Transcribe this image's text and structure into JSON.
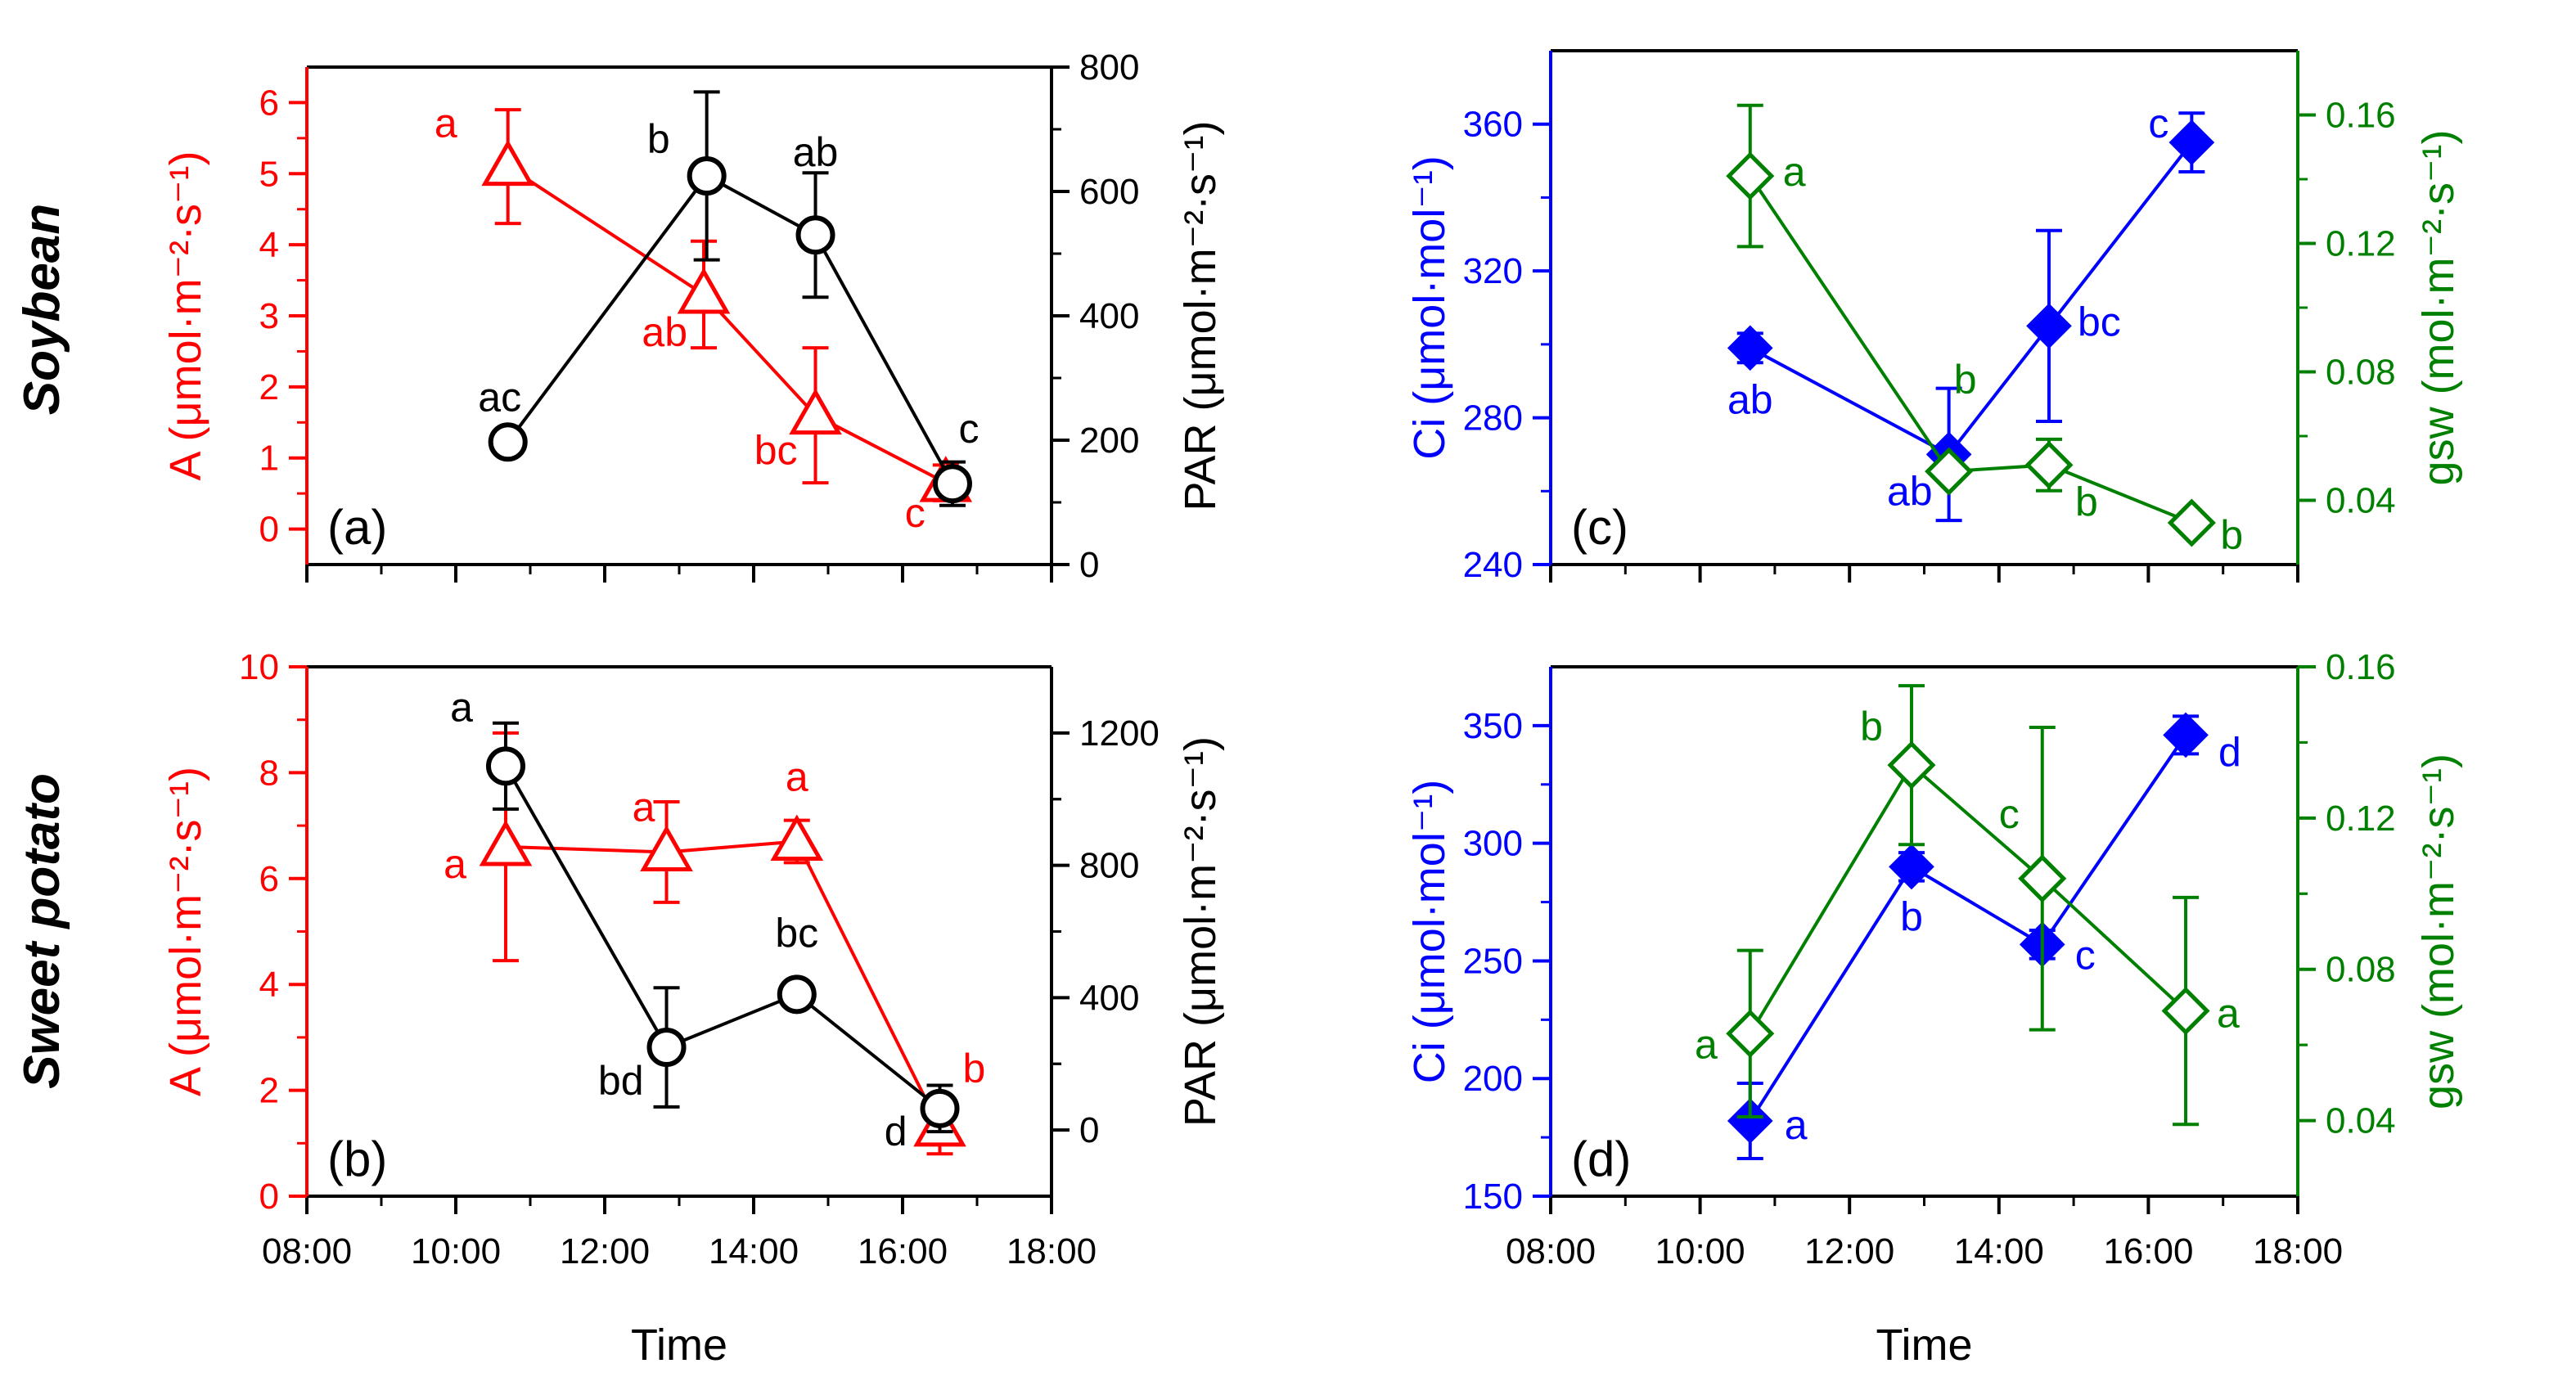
{
  "figure": {
    "row_labels": [
      "Soybean",
      "Sweet potato"
    ],
    "colors": {
      "A": "#ff0000",
      "PAR": "#000000",
      "Ci": "#0000ff",
      "gsw": "#008000",
      "frame": "#000000"
    }
  },
  "chart_data": [
    {
      "type": "line",
      "panel": "(a)",
      "row": "Soybean",
      "xlabel": "",
      "x_ticks": [
        "08:00",
        "10:00",
        "12:00",
        "14:00",
        "16:00",
        "18:00"
      ],
      "xlim_hours": [
        8,
        18
      ],
      "left_axis": {
        "label": "A (μmol·m⁻²·s⁻¹)",
        "ticks": [
          "0",
          "1",
          "2",
          "3",
          "4",
          "5",
          "6"
        ],
        "ylim": [
          -0.5,
          6.5
        ],
        "color": "#ff0000"
      },
      "right_axis": {
        "label": "PAR (μmol·m⁻²·s⁻¹)",
        "ticks": [
          "0",
          "200",
          "400",
          "600",
          "800"
        ],
        "ylim": [
          0,
          800
        ],
        "color": "#000000"
      },
      "series": [
        {
          "name": "A",
          "axis": "left",
          "marker": "open-triangle",
          "color": "#ff0000",
          "x": [
            10.7,
            13.33,
            14.83,
            16.58
          ],
          "y": [
            5.1,
            3.3,
            1.6,
            0.65
          ],
          "err": [
            0.8,
            0.75,
            0.95,
            0.25
          ],
          "letters": [
            "a",
            "ab",
            "bc",
            "c"
          ]
        },
        {
          "name": "PAR",
          "axis": "right",
          "marker": "open-circle",
          "color": "#000000",
          "x": [
            10.7,
            13.37,
            14.83,
            16.67
          ],
          "y": [
            197,
            625,
            530,
            130
          ],
          "err": [
            10,
            135,
            100,
            35
          ],
          "letters": [
            "ac",
            "b",
            "ab",
            "c"
          ]
        }
      ]
    },
    {
      "type": "line",
      "panel": "(b)",
      "row": "Sweet potato",
      "xlabel": "Time",
      "x_ticks": [
        "08:00",
        "10:00",
        "12:00",
        "14:00",
        "16:00",
        "18:00"
      ],
      "xlim_hours": [
        8,
        18
      ],
      "left_axis": {
        "label": "A (μmol·m⁻²·s⁻¹)",
        "ticks": [
          "0",
          "2",
          "4",
          "6",
          "8",
          "10"
        ],
        "ylim": [
          0,
          10
        ],
        "color": "#ff0000"
      },
      "right_axis": {
        "label": "PAR (μmol·m⁻²·s⁻¹)",
        "ticks": [
          "0",
          "400",
          "800",
          "1200"
        ],
        "ylim": [
          -200,
          1400
        ],
        "color": "#000000"
      },
      "series": [
        {
          "name": "A",
          "axis": "left",
          "marker": "open-triangle",
          "color": "#ff0000",
          "x": [
            10.67,
            12.83,
            14.58,
            16.5
          ],
          "y": [
            6.6,
            6.5,
            6.7,
            1.3
          ],
          "err": [
            2.15,
            0.95,
            0.4,
            0.5
          ],
          "letters": [
            "a",
            "a",
            "a",
            "b"
          ]
        },
        {
          "name": "PAR",
          "axis": "right",
          "marker": "open-circle",
          "color": "#000000",
          "x": [
            10.67,
            12.83,
            14.58,
            16.5
          ],
          "y": [
            1100,
            250,
            410,
            65
          ],
          "err": [
            130,
            180,
            20,
            70
          ],
          "letters": [
            "a",
            "bd",
            "bc",
            "d"
          ]
        }
      ]
    },
    {
      "type": "line",
      "panel": "(c)",
      "row": "Soybean",
      "xlabel": "",
      "x_ticks": [
        "08:00",
        "10:00",
        "12:00",
        "14:00",
        "16:00",
        "18:00"
      ],
      "xlim_hours": [
        8,
        18
      ],
      "left_axis": {
        "label": "Ci (μmol·mol⁻¹)",
        "ticks": [
          "240",
          "280",
          "320",
          "360"
        ],
        "ylim": [
          240,
          380
        ],
        "color": "#0000ff"
      },
      "right_axis": {
        "label": "gsw (mol·m⁻²·s⁻¹)",
        "ticks": [
          "0.04",
          "0.08",
          "0.12",
          "0.16"
        ],
        "ylim": [
          0.02,
          0.18
        ],
        "color": "#008000"
      },
      "series": [
        {
          "name": "Ci",
          "axis": "left",
          "marker": "filled-diamond",
          "color": "#0000ff",
          "x": [
            10.67,
            13.33,
            14.67,
            16.58
          ],
          "y": [
            299,
            270,
            305,
            355
          ],
          "err": [
            4,
            18,
            26,
            8
          ],
          "letters": [
            "ab",
            "ab",
            "bc",
            "c"
          ]
        },
        {
          "name": "gsw",
          "axis": "right",
          "marker": "open-diamond",
          "color": "#008000",
          "x": [
            10.67,
            13.33,
            14.67,
            16.58
          ],
          "y": [
            0.141,
            0.049,
            0.051,
            0.033
          ],
          "err": [
            0.022,
            0.002,
            0.008,
            0.002
          ],
          "letters": [
            "a",
            "b",
            "b",
            "b"
          ]
        }
      ]
    },
    {
      "type": "line",
      "panel": "(d)",
      "row": "Sweet potato",
      "xlabel": "Time",
      "x_ticks": [
        "08:00",
        "10:00",
        "12:00",
        "14:00",
        "16:00",
        "18:00"
      ],
      "xlim_hours": [
        8,
        18
      ],
      "left_axis": {
        "label": "Ci (μmol·mol⁻¹)",
        "ticks": [
          "150",
          "200",
          "250",
          "300",
          "350"
        ],
        "ylim": [
          150,
          375
        ],
        "color": "#0000ff"
      },
      "right_axis": {
        "label": "gsw (mol·m⁻²·s⁻¹)",
        "ticks": [
          "0.04",
          "0.08",
          "0.12",
          "0.16"
        ],
        "ylim": [
          0.02,
          0.16
        ],
        "color": "#008000"
      },
      "series": [
        {
          "name": "Ci",
          "axis": "left",
          "marker": "filled-diamond",
          "color": "#0000ff",
          "x": [
            10.67,
            12.83,
            14.58,
            16.5
          ],
          "y": [
            182,
            290,
            257,
            346
          ],
          "err": [
            16,
            6,
            6,
            8
          ],
          "letters": [
            "a",
            "b",
            "c",
            "d"
          ]
        },
        {
          "name": "gsw",
          "axis": "right",
          "marker": "open-diamond",
          "color": "#008000",
          "x": [
            10.67,
            12.83,
            14.58,
            16.5
          ],
          "y": [
            0.063,
            0.134,
            0.104,
            0.069
          ],
          "err": [
            0.022,
            0.021,
            0.04,
            0.03
          ],
          "letters": [
            "a",
            "b",
            "c",
            "a"
          ]
        }
      ]
    }
  ]
}
